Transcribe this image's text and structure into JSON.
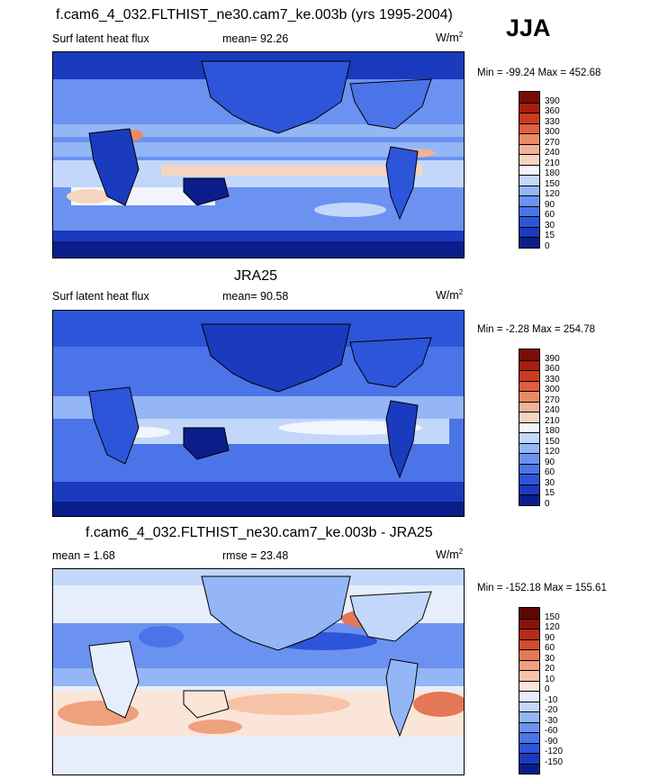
{
  "season": "JJA",
  "colors": {
    "panel1": [
      "#0a1d8a",
      "#1a3bbd",
      "#2d55d9",
      "#4a74e8",
      "#6b92f0",
      "#94b6f6",
      "#c2d7fa",
      "#f2f5fc",
      "#f6d5c0",
      "#f1b295",
      "#ea8a66",
      "#df5f3e",
      "#cc3a20",
      "#a81d10",
      "#7a0c06"
    ],
    "panel3": [
      "#0a1d8a",
      "#1a3bbd",
      "#2d55d9",
      "#4a74e8",
      "#6b92f0",
      "#94b6f6",
      "#c2d7fa",
      "#e6eefc",
      "#fbe5d9",
      "#f6c3a8",
      "#efa07d",
      "#e47755",
      "#d24d30",
      "#b62a16",
      "#8a1208",
      "#5e0603"
    ]
  },
  "panels": [
    {
      "title": "f.cam6_4_032.FLTHIST_ne30.cam7_ke.003b (yrs 1995-2004)",
      "left_label": "Surf latent heat flux",
      "center_label": "mean=  92.26",
      "units": "W/m",
      "units_exp": "2",
      "minmax": "Min = -99.24 Max = 452.68",
      "colorbar_labels": [
        "390",
        "360",
        "330",
        "300",
        "270",
        "240",
        "210",
        "180",
        "150",
        "120",
        "90",
        "60",
        "30",
        "15",
        "0"
      ]
    },
    {
      "title": "JRA25",
      "left_label": "Surf latent heat flux",
      "center_label": "mean=  90.58",
      "units": "W/m",
      "units_exp": "2",
      "minmax": "Min =  -2.28 Max = 254.78",
      "colorbar_labels": [
        "390",
        "360",
        "330",
        "300",
        "270",
        "240",
        "210",
        "180",
        "150",
        "120",
        "90",
        "60",
        "30",
        "15",
        "0"
      ]
    },
    {
      "title": "f.cam6_4_032.FLTHIST_ne30.cam7_ke.003b - JRA25",
      "left_label": "mean =   1.68",
      "center_label": "rmse =  23.48",
      "units": "W/m",
      "units_exp": "2",
      "minmax": "Min = -152.18 Max = 155.61",
      "colorbar_labels": [
        "150",
        "120",
        "90",
        "60",
        "30",
        "20",
        "10",
        "0",
        "-10",
        "-20",
        "-30",
        "-60",
        "-90",
        "-120",
        "-150"
      ]
    }
  ]
}
